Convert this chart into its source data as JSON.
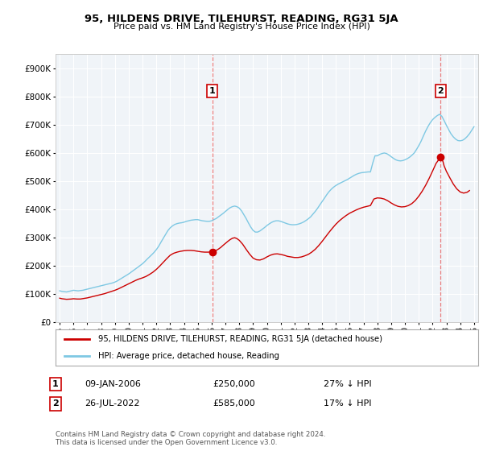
{
  "title": "95, HILDENS DRIVE, TILEHURST, READING, RG31 5JA",
  "subtitle": "Price paid vs. HM Land Registry's House Price Index (HPI)",
  "ylim": [
    0,
    950000
  ],
  "xlim_start": 1994.7,
  "xlim_end": 2025.3,
  "transaction1_date": 2006.04,
  "transaction1_price": 250000,
  "transaction2_date": 2022.57,
  "transaction2_price": 585000,
  "hpi_color": "#7ec8e3",
  "price_color": "#cc0000",
  "vline_color": "#e87070",
  "background_color": "#ffffff",
  "chart_bg_color": "#f0f4f8",
  "grid_color": "#ffffff",
  "legend_label_price": "95, HILDENS DRIVE, TILEHURST, READING, RG31 5JA (detached house)",
  "legend_label_hpi": "HPI: Average price, detached house, Reading",
  "footer": "Contains HM Land Registry data © Crown copyright and database right 2024.\nThis data is licensed under the Open Government Licence v3.0.",
  "hpi_data": [
    [
      1995.0,
      112000
    ],
    [
      1995.08,
      111000
    ],
    [
      1995.17,
      110000
    ],
    [
      1995.25,
      109500
    ],
    [
      1995.33,
      109000
    ],
    [
      1995.42,
      108500
    ],
    [
      1995.5,
      108000
    ],
    [
      1995.58,
      109000
    ],
    [
      1995.67,
      110000
    ],
    [
      1995.75,
      111000
    ],
    [
      1995.83,
      112000
    ],
    [
      1995.92,
      113000
    ],
    [
      1996.0,
      114000
    ],
    [
      1996.17,
      113000
    ],
    [
      1996.33,
      112000
    ],
    [
      1996.5,
      113000
    ],
    [
      1996.67,
      114000
    ],
    [
      1996.83,
      116000
    ],
    [
      1997.0,
      118000
    ],
    [
      1997.17,
      120000
    ],
    [
      1997.33,
      122000
    ],
    [
      1997.5,
      124000
    ],
    [
      1997.67,
      126000
    ],
    [
      1997.83,
      128000
    ],
    [
      1998.0,
      130000
    ],
    [
      1998.17,
      132000
    ],
    [
      1998.33,
      134000
    ],
    [
      1998.5,
      136000
    ],
    [
      1998.67,
      138000
    ],
    [
      1998.83,
      140000
    ],
    [
      1999.0,
      143000
    ],
    [
      1999.17,
      147000
    ],
    [
      1999.33,
      152000
    ],
    [
      1999.5,
      157000
    ],
    [
      1999.67,
      162000
    ],
    [
      1999.83,
      167000
    ],
    [
      2000.0,
      172000
    ],
    [
      2000.17,
      178000
    ],
    [
      2000.33,
      184000
    ],
    [
      2000.5,
      190000
    ],
    [
      2000.67,
      196000
    ],
    [
      2000.83,
      202000
    ],
    [
      2001.0,
      208000
    ],
    [
      2001.17,
      216000
    ],
    [
      2001.33,
      224000
    ],
    [
      2001.5,
      232000
    ],
    [
      2001.67,
      240000
    ],
    [
      2001.83,
      248000
    ],
    [
      2002.0,
      258000
    ],
    [
      2002.17,
      270000
    ],
    [
      2002.33,
      284000
    ],
    [
      2002.5,
      298000
    ],
    [
      2002.67,
      312000
    ],
    [
      2002.83,
      325000
    ],
    [
      2003.0,
      335000
    ],
    [
      2003.17,
      342000
    ],
    [
      2003.33,
      347000
    ],
    [
      2003.5,
      350000
    ],
    [
      2003.67,
      352000
    ],
    [
      2003.83,
      353000
    ],
    [
      2004.0,
      355000
    ],
    [
      2004.17,
      358000
    ],
    [
      2004.33,
      360000
    ],
    [
      2004.5,
      362000
    ],
    [
      2004.67,
      363000
    ],
    [
      2004.83,
      364000
    ],
    [
      2005.0,
      364000
    ],
    [
      2005.17,
      362000
    ],
    [
      2005.33,
      360000
    ],
    [
      2005.5,
      359000
    ],
    [
      2005.67,
      358000
    ],
    [
      2005.83,
      358000
    ],
    [
      2006.0,
      360000
    ],
    [
      2006.17,
      364000
    ],
    [
      2006.33,
      368000
    ],
    [
      2006.5,
      374000
    ],
    [
      2006.67,
      380000
    ],
    [
      2006.83,
      386000
    ],
    [
      2007.0,
      393000
    ],
    [
      2007.17,
      400000
    ],
    [
      2007.33,
      406000
    ],
    [
      2007.5,
      410000
    ],
    [
      2007.67,
      412000
    ],
    [
      2007.83,
      410000
    ],
    [
      2008.0,
      405000
    ],
    [
      2008.17,
      395000
    ],
    [
      2008.33,
      382000
    ],
    [
      2008.5,
      368000
    ],
    [
      2008.67,
      352000
    ],
    [
      2008.83,
      338000
    ],
    [
      2009.0,
      326000
    ],
    [
      2009.17,
      320000
    ],
    [
      2009.33,
      320000
    ],
    [
      2009.5,
      324000
    ],
    [
      2009.67,
      330000
    ],
    [
      2009.83,
      336000
    ],
    [
      2010.0,
      343000
    ],
    [
      2010.17,
      349000
    ],
    [
      2010.33,
      354000
    ],
    [
      2010.5,
      358000
    ],
    [
      2010.67,
      360000
    ],
    [
      2010.83,
      360000
    ],
    [
      2011.0,
      358000
    ],
    [
      2011.17,
      355000
    ],
    [
      2011.33,
      352000
    ],
    [
      2011.5,
      349000
    ],
    [
      2011.67,
      347000
    ],
    [
      2011.83,
      346000
    ],
    [
      2012.0,
      346000
    ],
    [
      2012.17,
      347000
    ],
    [
      2012.33,
      349000
    ],
    [
      2012.5,
      352000
    ],
    [
      2012.67,
      356000
    ],
    [
      2012.83,
      361000
    ],
    [
      2013.0,
      367000
    ],
    [
      2013.17,
      374000
    ],
    [
      2013.33,
      383000
    ],
    [
      2013.5,
      393000
    ],
    [
      2013.67,
      404000
    ],
    [
      2013.83,
      416000
    ],
    [
      2014.0,
      428000
    ],
    [
      2014.17,
      440000
    ],
    [
      2014.33,
      452000
    ],
    [
      2014.5,
      463000
    ],
    [
      2014.67,
      472000
    ],
    [
      2014.83,
      479000
    ],
    [
      2015.0,
      485000
    ],
    [
      2015.17,
      490000
    ],
    [
      2015.33,
      494000
    ],
    [
      2015.5,
      498000
    ],
    [
      2015.67,
      502000
    ],
    [
      2015.83,
      506000
    ],
    [
      2016.0,
      511000
    ],
    [
      2016.17,
      516000
    ],
    [
      2016.33,
      521000
    ],
    [
      2016.5,
      525000
    ],
    [
      2016.67,
      528000
    ],
    [
      2016.83,
      530000
    ],
    [
      2017.0,
      531000
    ],
    [
      2017.17,
      532000
    ],
    [
      2017.33,
      533000
    ],
    [
      2017.5,
      533000
    ],
    [
      2017.67,
      565000
    ],
    [
      2017.83,
      590000
    ],
    [
      2018.0,
      590000
    ],
    [
      2018.17,
      595000
    ],
    [
      2018.33,
      598000
    ],
    [
      2018.5,
      600000
    ],
    [
      2018.67,
      598000
    ],
    [
      2018.83,
      593000
    ],
    [
      2019.0,
      587000
    ],
    [
      2019.17,
      581000
    ],
    [
      2019.33,
      576000
    ],
    [
      2019.5,
      573000
    ],
    [
      2019.67,
      572000
    ],
    [
      2019.83,
      573000
    ],
    [
      2020.0,
      576000
    ],
    [
      2020.17,
      580000
    ],
    [
      2020.33,
      585000
    ],
    [
      2020.5,
      592000
    ],
    [
      2020.67,
      600000
    ],
    [
      2020.83,
      612000
    ],
    [
      2021.0,
      626000
    ],
    [
      2021.17,
      642000
    ],
    [
      2021.33,
      660000
    ],
    [
      2021.5,
      678000
    ],
    [
      2021.67,
      694000
    ],
    [
      2021.83,
      707000
    ],
    [
      2022.0,
      718000
    ],
    [
      2022.17,
      726000
    ],
    [
      2022.33,
      732000
    ],
    [
      2022.5,
      737000
    ],
    [
      2022.67,
      730000
    ],
    [
      2022.83,
      715000
    ],
    [
      2023.0,
      698000
    ],
    [
      2023.17,
      682000
    ],
    [
      2023.33,
      668000
    ],
    [
      2023.5,
      657000
    ],
    [
      2023.67,
      649000
    ],
    [
      2023.83,
      644000
    ],
    [
      2024.0,
      643000
    ],
    [
      2024.17,
      645000
    ],
    [
      2024.33,
      650000
    ],
    [
      2024.5,
      658000
    ],
    [
      2024.67,
      668000
    ],
    [
      2024.83,
      680000
    ],
    [
      2025.0,
      693000
    ]
  ],
  "price_data": [
    [
      1995.0,
      86000
    ],
    [
      1995.08,
      85000
    ],
    [
      1995.17,
      84000
    ],
    [
      1995.25,
      83500
    ],
    [
      1995.33,
      83000
    ],
    [
      1995.5,
      82000
    ],
    [
      1995.67,
      82500
    ],
    [
      1995.83,
      83000
    ],
    [
      1996.0,
      84000
    ],
    [
      1996.25,
      83000
    ],
    [
      1996.5,
      83000
    ],
    [
      1996.75,
      85000
    ],
    [
      1997.0,
      87000
    ],
    [
      1997.25,
      90000
    ],
    [
      1997.5,
      93000
    ],
    [
      1997.75,
      96000
    ],
    [
      1998.0,
      99000
    ],
    [
      1998.25,
      102000
    ],
    [
      1998.5,
      106000
    ],
    [
      1998.75,
      110000
    ],
    [
      1999.0,
      114000
    ],
    [
      1999.25,
      119000
    ],
    [
      1999.5,
      125000
    ],
    [
      1999.75,
      131000
    ],
    [
      2000.0,
      137000
    ],
    [
      2000.25,
      143000
    ],
    [
      2000.5,
      149000
    ],
    [
      2000.75,
      154000
    ],
    [
      2001.0,
      158000
    ],
    [
      2001.25,
      163000
    ],
    [
      2001.5,
      170000
    ],
    [
      2001.75,
      178000
    ],
    [
      2002.0,
      188000
    ],
    [
      2002.25,
      200000
    ],
    [
      2002.5,
      213000
    ],
    [
      2002.75,
      226000
    ],
    [
      2003.0,
      238000
    ],
    [
      2003.25,
      245000
    ],
    [
      2003.5,
      249000
    ],
    [
      2003.75,
      252000
    ],
    [
      2004.0,
      254000
    ],
    [
      2004.25,
      255000
    ],
    [
      2004.5,
      255000
    ],
    [
      2004.75,
      254000
    ],
    [
      2005.0,
      252000
    ],
    [
      2005.25,
      250000
    ],
    [
      2005.5,
      249000
    ],
    [
      2005.75,
      249000
    ],
    [
      2006.04,
      250000
    ],
    [
      2006.17,
      252000
    ],
    [
      2006.33,
      255000
    ],
    [
      2006.5,
      260000
    ],
    [
      2006.67,
      266000
    ],
    [
      2006.83,
      273000
    ],
    [
      2007.0,
      280000
    ],
    [
      2007.17,
      287000
    ],
    [
      2007.33,
      293000
    ],
    [
      2007.5,
      298000
    ],
    [
      2007.67,
      300000
    ],
    [
      2007.83,
      297000
    ],
    [
      2008.0,
      291000
    ],
    [
      2008.25,
      277000
    ],
    [
      2008.5,
      259000
    ],
    [
      2008.75,
      242000
    ],
    [
      2009.0,
      228000
    ],
    [
      2009.25,
      222000
    ],
    [
      2009.5,
      221000
    ],
    [
      2009.75,
      225000
    ],
    [
      2010.0,
      232000
    ],
    [
      2010.25,
      238000
    ],
    [
      2010.5,
      242000
    ],
    [
      2010.75,
      243000
    ],
    [
      2011.0,
      241000
    ],
    [
      2011.25,
      238000
    ],
    [
      2011.5,
      234000
    ],
    [
      2011.75,
      232000
    ],
    [
      2012.0,
      230000
    ],
    [
      2012.25,
      230000
    ],
    [
      2012.5,
      232000
    ],
    [
      2012.75,
      236000
    ],
    [
      2013.0,
      241000
    ],
    [
      2013.25,
      249000
    ],
    [
      2013.5,
      259000
    ],
    [
      2013.75,
      272000
    ],
    [
      2014.0,
      287000
    ],
    [
      2014.25,
      303000
    ],
    [
      2014.5,
      319000
    ],
    [
      2014.75,
      334000
    ],
    [
      2015.0,
      348000
    ],
    [
      2015.25,
      360000
    ],
    [
      2015.5,
      370000
    ],
    [
      2015.75,
      379000
    ],
    [
      2016.0,
      387000
    ],
    [
      2016.25,
      393000
    ],
    [
      2016.5,
      399000
    ],
    [
      2016.75,
      404000
    ],
    [
      2017.0,
      408000
    ],
    [
      2017.25,
      411000
    ],
    [
      2017.5,
      414000
    ],
    [
      2017.75,
      437000
    ],
    [
      2018.0,
      441000
    ],
    [
      2018.25,
      440000
    ],
    [
      2018.5,
      437000
    ],
    [
      2018.75,
      431000
    ],
    [
      2019.0,
      423000
    ],
    [
      2019.25,
      416000
    ],
    [
      2019.5,
      411000
    ],
    [
      2019.75,
      409000
    ],
    [
      2020.0,
      410000
    ],
    [
      2020.25,
      414000
    ],
    [
      2020.5,
      421000
    ],
    [
      2020.75,
      432000
    ],
    [
      2021.0,
      447000
    ],
    [
      2021.25,
      465000
    ],
    [
      2021.5,
      486000
    ],
    [
      2021.75,
      510000
    ],
    [
      2022.0,
      536000
    ],
    [
      2022.25,
      563000
    ],
    [
      2022.57,
      585000
    ],
    [
      2022.75,
      570000
    ],
    [
      2022.83,
      555000
    ],
    [
      2023.0,
      535000
    ],
    [
      2023.25,
      512000
    ],
    [
      2023.5,
      490000
    ],
    [
      2023.75,
      473000
    ],
    [
      2024.0,
      462000
    ],
    [
      2024.25,
      458000
    ],
    [
      2024.5,
      461000
    ],
    [
      2024.67,
      467000
    ]
  ]
}
